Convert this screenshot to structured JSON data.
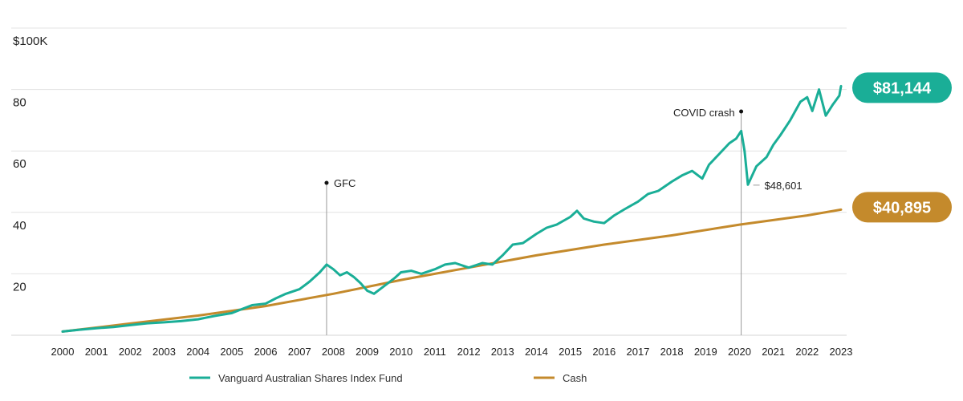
{
  "chart_data": {
    "type": "line",
    "title": "",
    "xlabel": "",
    "ylabel": "",
    "y_unit_label": "$100K",
    "xlim": [
      2000,
      2023
    ],
    "ylim": [
      0,
      100
    ],
    "y_ticks": [
      {
        "value": 20,
        "label": "20"
      },
      {
        "value": 40,
        "label": "40"
      },
      {
        "value": 60,
        "label": "60"
      },
      {
        "value": 80,
        "label": "80"
      },
      {
        "value": 100,
        "label": "$100K"
      }
    ],
    "x_ticks": [
      "2000",
      "2001",
      "2002",
      "2003",
      "2004",
      "2005",
      "2006",
      "2007",
      "2008",
      "2009",
      "2010",
      "2011",
      "2012",
      "2013",
      "2014",
      "2015",
      "2016",
      "2017",
      "2018",
      "2019",
      "2020",
      "2021",
      "2022",
      "2023"
    ],
    "grid": true,
    "series": [
      {
        "name": "Vanguard Australian Shares Index Fund",
        "color": "#1aae97",
        "final_value_label": "$81,144",
        "points": [
          [
            2000.0,
            1.2
          ],
          [
            2000.5,
            1.8
          ],
          [
            2001.0,
            2.3
          ],
          [
            2001.5,
            2.7
          ],
          [
            2002.0,
            3.3
          ],
          [
            2002.5,
            3.9
          ],
          [
            2003.0,
            4.2
          ],
          [
            2003.5,
            4.6
          ],
          [
            2004.0,
            5.2
          ],
          [
            2004.5,
            6.3
          ],
          [
            2005.0,
            7.2
          ],
          [
            2005.3,
            8.5
          ],
          [
            2005.6,
            9.8
          ],
          [
            2006.0,
            10.3
          ],
          [
            2006.3,
            12.0
          ],
          [
            2006.6,
            13.5
          ],
          [
            2007.0,
            15.0
          ],
          [
            2007.3,
            17.5
          ],
          [
            2007.6,
            20.5
          ],
          [
            2007.8,
            23.0
          ],
          [
            2008.0,
            21.5
          ],
          [
            2008.2,
            19.5
          ],
          [
            2008.4,
            20.5
          ],
          [
            2008.6,
            19.0
          ],
          [
            2008.8,
            17.0
          ],
          [
            2009.0,
            14.5
          ],
          [
            2009.2,
            13.5
          ],
          [
            2009.5,
            16.0
          ],
          [
            2009.8,
            18.5
          ],
          [
            2010.0,
            20.5
          ],
          [
            2010.3,
            21.0
          ],
          [
            2010.6,
            20.0
          ],
          [
            2011.0,
            21.5
          ],
          [
            2011.3,
            23.0
          ],
          [
            2011.6,
            23.5
          ],
          [
            2012.0,
            22.0
          ],
          [
            2012.4,
            23.5
          ],
          [
            2012.7,
            23.0
          ],
          [
            2013.0,
            26.0
          ],
          [
            2013.3,
            29.5
          ],
          [
            2013.6,
            30.0
          ],
          [
            2014.0,
            33.0
          ],
          [
            2014.3,
            35.0
          ],
          [
            2014.6,
            36.0
          ],
          [
            2015.0,
            38.5
          ],
          [
            2015.2,
            40.5
          ],
          [
            2015.4,
            38.0
          ],
          [
            2015.7,
            37.0
          ],
          [
            2016.0,
            36.5
          ],
          [
            2016.3,
            39.0
          ],
          [
            2016.6,
            41.0
          ],
          [
            2017.0,
            43.5
          ],
          [
            2017.3,
            46.0
          ],
          [
            2017.6,
            47.0
          ],
          [
            2018.0,
            50.0
          ],
          [
            2018.3,
            52.0
          ],
          [
            2018.6,
            53.5
          ],
          [
            2018.9,
            51.0
          ],
          [
            2019.1,
            55.5
          ],
          [
            2019.4,
            59.0
          ],
          [
            2019.7,
            62.5
          ],
          [
            2019.9,
            64.0
          ],
          [
            2020.05,
            66.5
          ],
          [
            2020.15,
            60.0
          ],
          [
            2020.25,
            49.0
          ],
          [
            2020.5,
            55.0
          ],
          [
            2020.8,
            58.0
          ],
          [
            2021.0,
            62.0
          ],
          [
            2021.2,
            65.0
          ],
          [
            2021.5,
            70.0
          ],
          [
            2021.8,
            76.0
          ],
          [
            2022.0,
            77.5
          ],
          [
            2022.15,
            73.0
          ],
          [
            2022.35,
            80.0
          ],
          [
            2022.55,
            71.5
          ],
          [
            2022.75,
            75.0
          ],
          [
            2022.95,
            78.0
          ],
          [
            2023.0,
            81.1
          ]
        ]
      },
      {
        "name": "Cash",
        "color": "#c48a2c",
        "final_value_label": "$40,895",
        "points": [
          [
            2000.0,
            1.2
          ],
          [
            2002.0,
            3.8
          ],
          [
            2004.0,
            6.4
          ],
          [
            2006.0,
            9.5
          ],
          [
            2008.0,
            13.5
          ],
          [
            2010.0,
            18.0
          ],
          [
            2012.0,
            22.0
          ],
          [
            2014.0,
            26.0
          ],
          [
            2016.0,
            29.5
          ],
          [
            2018.0,
            32.5
          ],
          [
            2020.0,
            36.0
          ],
          [
            2022.0,
            39.0
          ],
          [
            2023.0,
            40.9
          ]
        ]
      }
    ],
    "annotations": [
      {
        "label": "GFC",
        "x": 2007.8
      },
      {
        "label": "COVID crash",
        "x": 2020.05
      },
      {
        "label": "$48,601",
        "x": 2020.25,
        "y": 48.6
      }
    ]
  }
}
